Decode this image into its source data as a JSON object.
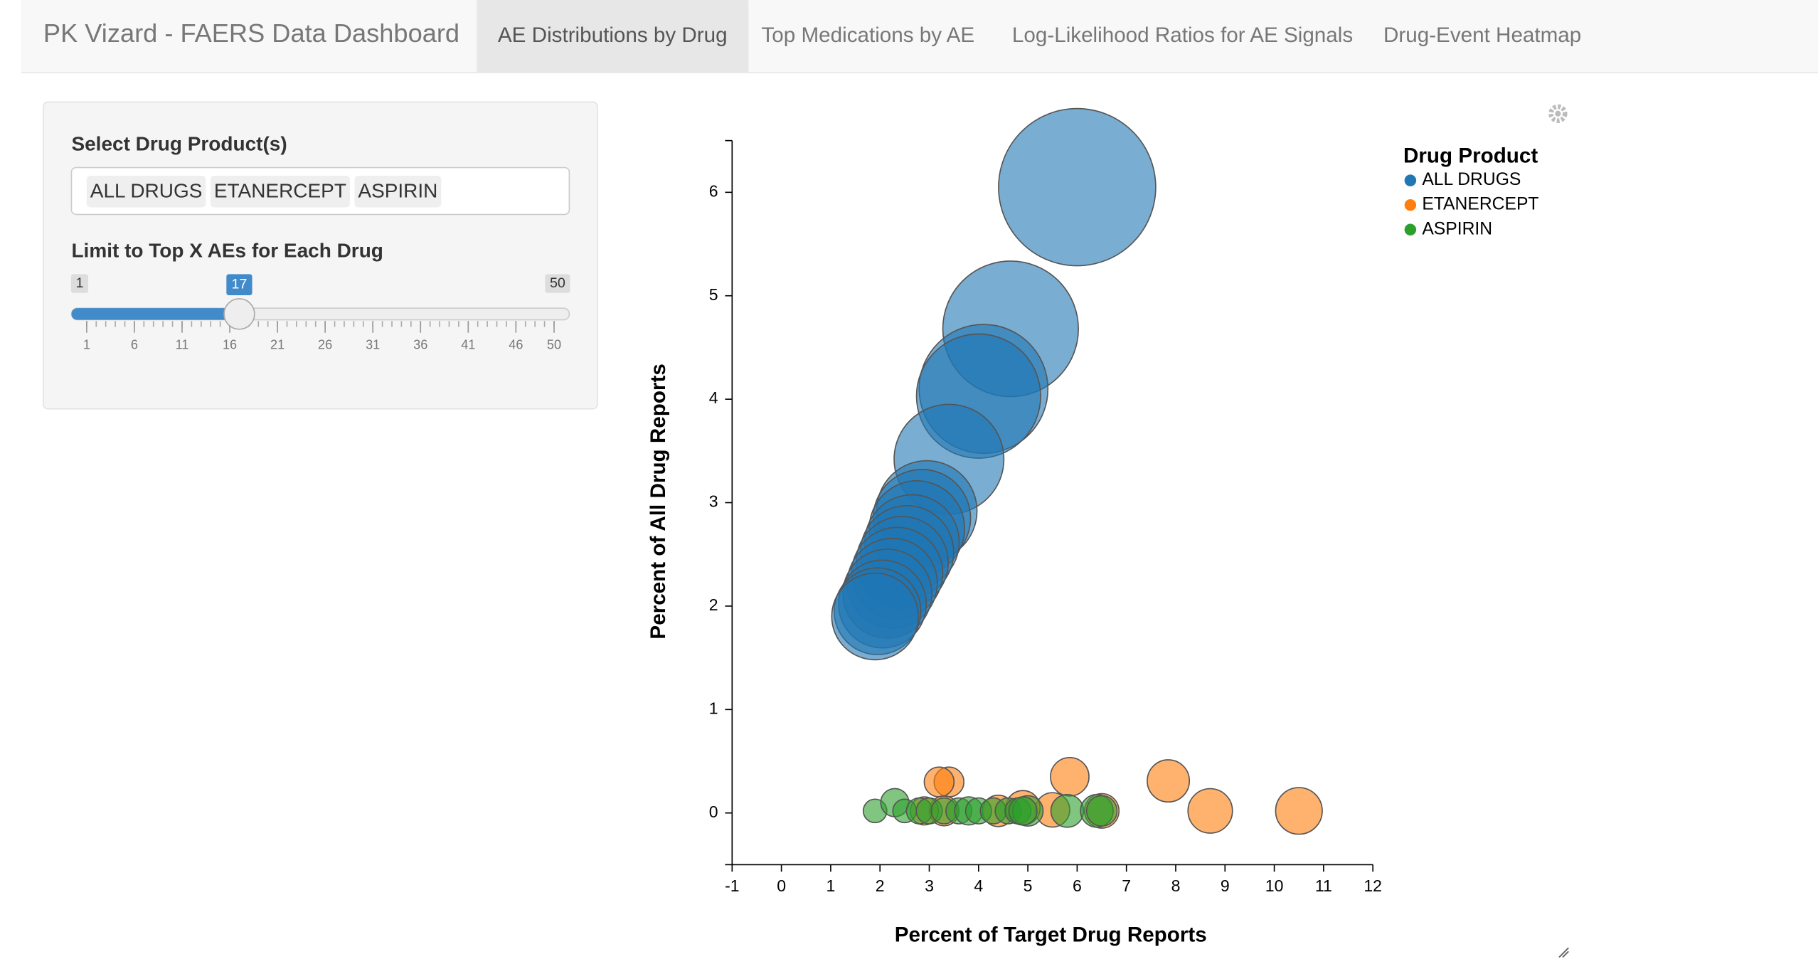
{
  "navbar": {
    "brand": "PK Vizard - FAERS Data Dashboard",
    "tabs": [
      "AE Distributions by Drug",
      "Top Medications by AE",
      "Log-Likelihood Ratios for AE Signals",
      "Drug-Event Heatmap"
    ],
    "active_tab": 0
  },
  "sidebar": {
    "drug_label": "Select Drug Product(s)",
    "selected_drugs": [
      "ALL DRUGS",
      "ETANERCEPT",
      "ASPIRIN"
    ],
    "slider_label": "Limit to Top X AEs for Each Drug",
    "slider": {
      "min": 1,
      "max": 50,
      "value": 17,
      "tick_labels": [
        1,
        6,
        11,
        16,
        21,
        26,
        31,
        36,
        41,
        46,
        50
      ]
    }
  },
  "chart_data": {
    "type": "bubble",
    "x_label": "Percent of Target Drug Reports",
    "y_label": "Percent of All Drug Reports",
    "legend_title": "Drug Product",
    "xlim": [
      -1,
      12
    ],
    "ylim": [
      -0.5,
      6.5
    ],
    "xticks": [
      -1,
      0,
      1,
      2,
      3,
      4,
      5,
      6,
      7,
      8,
      9,
      10,
      11,
      12
    ],
    "yticks": [
      0,
      1,
      2,
      3,
      4,
      5,
      6
    ],
    "series": [
      {
        "name": "ALL DRUGS",
        "color": "#1f77b4",
        "x": [
          6.0,
          4.65,
          4.1,
          4.0,
          3.4,
          2.95,
          2.85,
          2.75,
          2.65,
          2.55,
          2.45,
          2.35,
          2.25,
          2.15,
          2.05,
          1.95,
          1.9
        ],
        "values": [
          6.05,
          4.68,
          4.1,
          4.03,
          3.42,
          2.92,
          2.85,
          2.75,
          2.62,
          2.52,
          2.42,
          2.32,
          2.22,
          2.12,
          2.02,
          1.95,
          1.9
        ],
        "sizes": [
          125,
          93,
          84,
          78,
          61,
          51,
          48,
          46,
          45,
          44,
          43,
          42,
          41,
          40,
          39,
          38,
          38
        ]
      },
      {
        "name": "ETANERCEPT",
        "color": "#ff7f0e",
        "x": [
          10.5,
          8.7,
          7.85,
          5.85,
          6.5,
          5.5,
          4.9,
          4.4,
          3.4,
          3.2,
          3.3,
          2.9
        ],
        "values": [
          0.02,
          0.02,
          0.31,
          0.35,
          0.02,
          0.03,
          0.05,
          0.02,
          0.3,
          0.3,
          0.02,
          0.02
        ],
        "sizes": [
          11,
          10,
          9,
          7.5,
          6,
          6,
          6,
          5,
          4.5,
          4.5,
          4.5,
          4
        ]
      },
      {
        "name": "ASPIRIN",
        "color": "#2ca02c",
        "x": [
          1.9,
          2.3,
          2.5,
          2.8,
          3.0,
          3.3,
          3.6,
          3.8,
          4.0,
          4.3,
          4.6,
          4.8,
          5.0,
          5.8,
          6.4,
          6.5,
          4.9
        ],
        "values": [
          0.02,
          0.1,
          0.02,
          0.02,
          0.02,
          0.02,
          0.02,
          0.02,
          0.02,
          0.02,
          0.02,
          0.02,
          0.02,
          0.02,
          0.02,
          0.02,
          0.02
        ],
        "sizes": [
          2.8,
          4,
          2.8,
          3.4,
          3.4,
          3.4,
          3.4,
          4,
          3.4,
          3.4,
          3.4,
          3.4,
          4.7,
          5.4,
          5.4,
          4.7,
          4
        ]
      }
    ]
  }
}
